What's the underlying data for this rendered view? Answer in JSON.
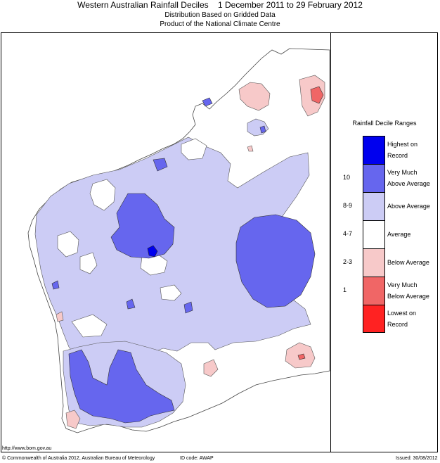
{
  "header": {
    "title": "Western Australian Rainfall Deciles    1 December 2011 to 29 February 2012",
    "subtitle1": "Distribution Based on Gridded Data",
    "subtitle2": "Product of the National Climate Centre"
  },
  "legend": {
    "title": "Rainfall Decile Ranges",
    "items": [
      {
        "label": "Highest on Record",
        "line1": "Highest on",
        "line2": "Record",
        "decile": "",
        "color": "#0000ee"
      },
      {
        "label": "Very Much Above Average",
        "line1": "Very Much",
        "line2": "Above Average",
        "decile": "10",
        "color": "#6666ee"
      },
      {
        "label": "Above Average",
        "line1": "Above Average",
        "line2": "",
        "decile": "8-9",
        "color": "#ccccf5"
      },
      {
        "label": "Average",
        "line1": "Average",
        "line2": "",
        "decile": "4-7",
        "color": "#ffffff"
      },
      {
        "label": "Below Average",
        "line1": "Below Average",
        "line2": "",
        "decile": "2-3",
        "color": "#f7c9c9"
      },
      {
        "label": "Very Much Below Average",
        "line1": "Very Much",
        "line2": "Below Average",
        "decile": "1",
        "color": "#f06666"
      },
      {
        "label": "Lowest on Record",
        "line1": "Lowest on",
        "line2": "Record",
        "decile": "",
        "color": "#ff2222"
      }
    ]
  },
  "footer": {
    "url": "http://www.bom.gov.au",
    "copyright": "© Commonwealth of Australia 2012, Australian Bureau of Meteorology",
    "id_code": "ID code: AWAP",
    "issued": "Issued: 30/08/2012"
  }
}
